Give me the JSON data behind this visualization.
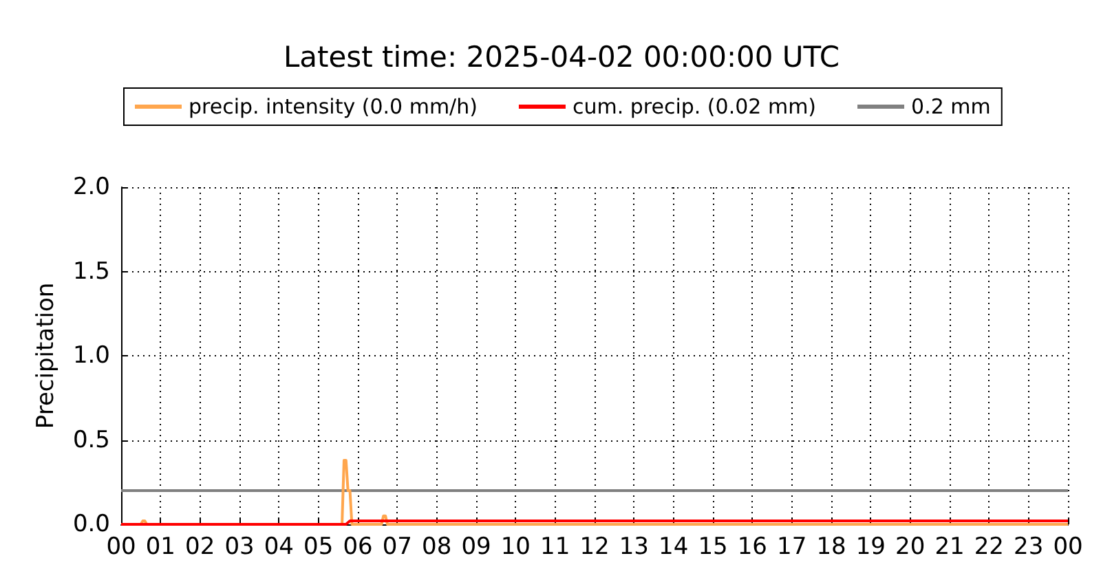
{
  "chart_data": {
    "type": "line",
    "title": "Latest time: 2025-04-02 00:00:00 UTC",
    "ylabel": "Precipitation",
    "series": [
      {
        "name": "precip. intensity (0.0 mm/h)",
        "color": "#ffa64d",
        "x": [
          0,
          0.5,
          0.55,
          0.6,
          0.65,
          5.6,
          5.65,
          5.7,
          5.75,
          5.8,
          5.85,
          6.6,
          6.65,
          6.7,
          6.75,
          24
        ],
        "values": [
          0,
          0,
          0.02,
          0.02,
          0,
          0,
          0.38,
          0.38,
          0.2,
          0.2,
          0,
          0,
          0.05,
          0.05,
          0,
          0
        ]
      },
      {
        "name": "cum. precip. (0.02 mm)",
        "color": "#ff0000",
        "x": [
          0,
          5.7,
          5.75,
          5.8,
          24
        ],
        "values": [
          0,
          0,
          0.01,
          0.02,
          0.02
        ]
      }
    ],
    "ref_lines": [
      {
        "axis": "y",
        "value": 0.2,
        "label": "0.2 mm",
        "color": "#808080",
        "line_style": "solid"
      }
    ],
    "xlim": [
      0,
      24
    ],
    "xticks": [
      {
        "value": 0,
        "label": "00"
      },
      {
        "value": 1,
        "label": "01"
      },
      {
        "value": 2,
        "label": "02"
      },
      {
        "value": 3,
        "label": "03"
      },
      {
        "value": 4,
        "label": "04"
      },
      {
        "value": 5,
        "label": "05"
      },
      {
        "value": 6,
        "label": "06"
      },
      {
        "value": 7,
        "label": "07"
      },
      {
        "value": 8,
        "label": "08"
      },
      {
        "value": 9,
        "label": "09"
      },
      {
        "value": 10,
        "label": "10"
      },
      {
        "value": 11,
        "label": "11"
      },
      {
        "value": 12,
        "label": "12"
      },
      {
        "value": 13,
        "label": "13"
      },
      {
        "value": 14,
        "label": "14"
      },
      {
        "value": 15,
        "label": "15"
      },
      {
        "value": 16,
        "label": "16"
      },
      {
        "value": 17,
        "label": "17"
      },
      {
        "value": 18,
        "label": "18"
      },
      {
        "value": 19,
        "label": "19"
      },
      {
        "value": 20,
        "label": "20"
      },
      {
        "value": 21,
        "label": "21"
      },
      {
        "value": 22,
        "label": "22"
      },
      {
        "value": 23,
        "label": "23"
      },
      {
        "value": 24,
        "label": "00"
      }
    ],
    "ylim": [
      0,
      2
    ],
    "yticks": [
      {
        "value": 0,
        "label": "0.0"
      },
      {
        "value": 0.5,
        "label": "0.5"
      },
      {
        "value": 1,
        "label": "1.0"
      },
      {
        "value": 1.5,
        "label": "1.5"
      },
      {
        "value": 2,
        "label": "2.0"
      }
    ],
    "grid": true,
    "legend": "top",
    "marker": "none",
    "line_style": "solid"
  }
}
